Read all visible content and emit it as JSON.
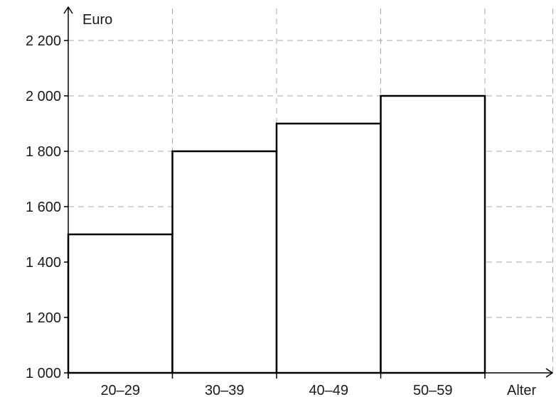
{
  "chart_data": {
    "type": "bar",
    "categories": [
      "20–29",
      "30–39",
      "40–49",
      "50–59"
    ],
    "values": [
      1500,
      1800,
      1900,
      2000
    ],
    "ylim": [
      1000,
      2200
    ],
    "yticks": [
      {
        "value": 1000,
        "label": "1 000"
      },
      {
        "value": 1200,
        "label": "1 200"
      },
      {
        "value": 1400,
        "label": "1 400"
      },
      {
        "value": 1600,
        "label": "1 600"
      },
      {
        "value": 1800,
        "label": "1 800"
      },
      {
        "value": 2000,
        "label": "2 000"
      },
      {
        "value": 2200,
        "label": "2 200"
      }
    ],
    "ylabel": "Euro",
    "xlabel": "Alter",
    "grid": true,
    "bar_fill": "#ffffff",
    "bar_stroke": "#000000",
    "grid_color": "#a8a8a8"
  }
}
